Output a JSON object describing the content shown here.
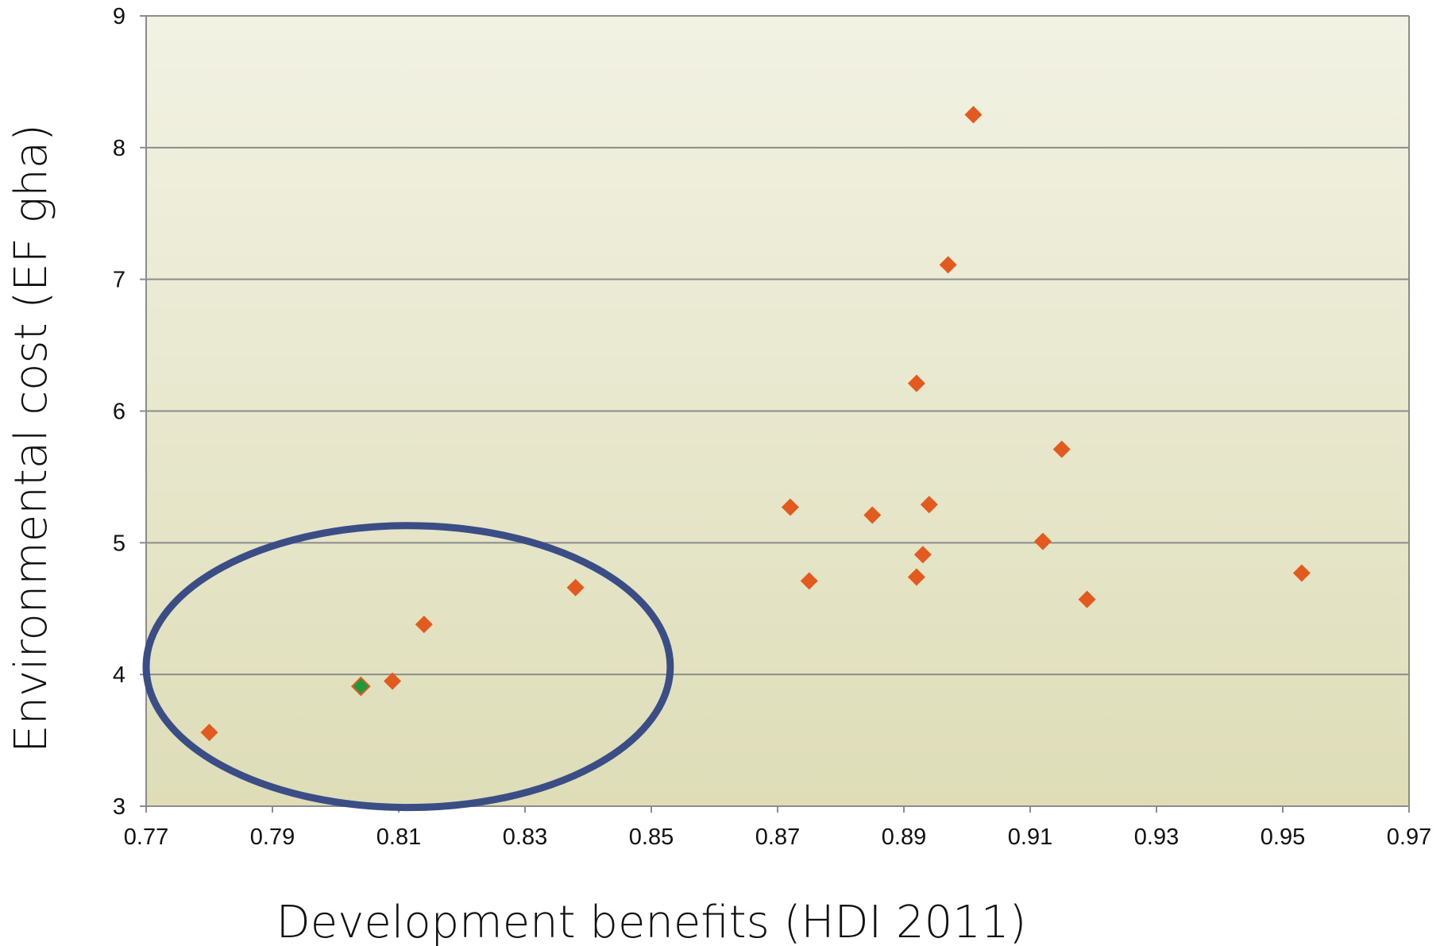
{
  "chart_data": {
    "type": "scatter",
    "xlabel": "Development benefits (HDI 2011)",
    "ylabel": "Environmental cost (EF gha)",
    "xlim": [
      0.77,
      0.97
    ],
    "ylim": [
      3,
      9
    ],
    "x_ticks": [
      0.77,
      0.79,
      0.81,
      0.83,
      0.85,
      0.87,
      0.89,
      0.91,
      0.93,
      0.95,
      0.97
    ],
    "y_ticks": [
      3,
      4,
      5,
      6,
      7,
      8,
      9
    ],
    "x_tick_labels": [
      "0.77",
      "0.79",
      "0.81",
      "0.83",
      "0.85",
      "0.87",
      "0.89",
      "0.91",
      "0.93",
      "0.95",
      "0.97"
    ],
    "y_tick_labels": [
      "3",
      "4",
      "5",
      "6",
      "7",
      "8",
      "9"
    ],
    "grid": "horizontal",
    "marker": "diamond",
    "series": [
      {
        "color": "#e35a1f",
        "points": [
          {
            "x": 0.78,
            "y": 3.56
          },
          {
            "x": 0.809,
            "y": 3.95
          },
          {
            "x": 0.814,
            "y": 4.38
          },
          {
            "x": 0.838,
            "y": 4.66
          },
          {
            "x": 0.872,
            "y": 5.27
          },
          {
            "x": 0.875,
            "y": 4.71
          },
          {
            "x": 0.885,
            "y": 5.21
          },
          {
            "x": 0.892,
            "y": 6.21
          },
          {
            "x": 0.892,
            "y": 4.74
          },
          {
            "x": 0.893,
            "y": 4.91
          },
          {
            "x": 0.894,
            "y": 5.29
          },
          {
            "x": 0.897,
            "y": 7.11
          },
          {
            "x": 0.901,
            "y": 8.25
          },
          {
            "x": 0.912,
            "y": 5.01
          },
          {
            "x": 0.915,
            "y": 5.71
          },
          {
            "x": 0.919,
            "y": 4.57
          },
          {
            "x": 0.953,
            "y": 4.77
          }
        ]
      },
      {
        "color": "#1e9a3a",
        "points": [
          {
            "x": 0.804,
            "y": 3.91
          }
        ]
      }
    ],
    "annotations": [
      {
        "type": "ellipse",
        "color": "#3a4d85",
        "cx": 0.8115,
        "cy": 4.06,
        "rx": 0.0415,
        "ry": 1.07
      }
    ],
    "colors": {
      "plot_bg_top": "#f2f2e4",
      "plot_bg_bottom": "#deddb8",
      "gridline": "#8c8c8c",
      "axis": "#8c8c8c"
    }
  }
}
